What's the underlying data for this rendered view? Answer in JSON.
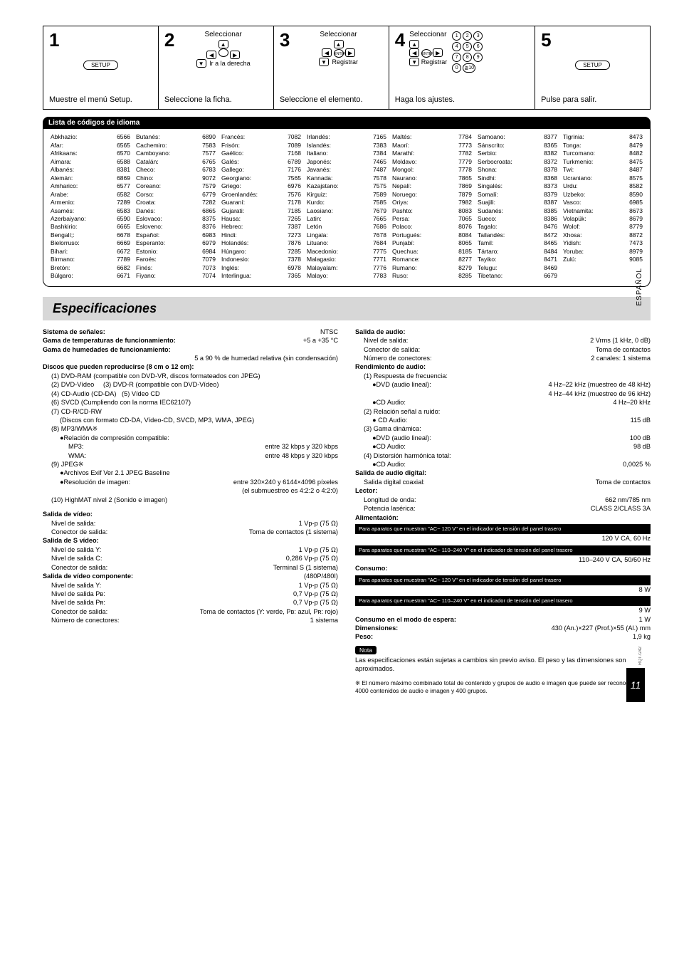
{
  "steps": [
    {
      "num": "1",
      "sel": null,
      "setup": "SETUP",
      "sub": null,
      "action": "Muestre el menú Setup."
    },
    {
      "num": "2",
      "sel": "Seleccionar",
      "setup": null,
      "sub": "Ir a la derecha",
      "action": "Seleccione la ficha."
    },
    {
      "num": "3",
      "sel": "Seleccionar",
      "setup": null,
      "sub": "Registrar",
      "action": "Seleccione el elemento."
    },
    {
      "num": "4",
      "sel": "Seleccionar",
      "setup": null,
      "sub": "Registrar",
      "action": "Haga los ajustes."
    },
    {
      "num": "5",
      "sel": null,
      "setup": "SETUP",
      "sub": null,
      "action": "Pulse para salir."
    }
  ],
  "lang_header": "Lista de códigos de idioma",
  "langs": [
    [
      [
        "Abkhazio:",
        "6566"
      ],
      [
        "Afar:",
        "6565"
      ],
      [
        "Afrikaans:",
        "6570"
      ],
      [
        "Aimara:",
        "6588"
      ],
      [
        "Albanés:",
        "8381"
      ],
      [
        "Alemán:",
        "6869"
      ],
      [
        "Amharico:",
        "6577"
      ],
      [
        "Arabe:",
        "6582"
      ],
      [
        "Armenio:",
        "7289"
      ],
      [
        "Asamés:",
        "6583"
      ],
      [
        "Azerbaiyano:",
        "6590"
      ],
      [
        "Bashkirio:",
        "6665"
      ],
      [
        "Bengalí;:",
        "6678"
      ],
      [
        "Bielorruso:",
        "6669"
      ],
      [
        "Bihari:",
        "6672"
      ],
      [
        "Birmano:",
        "7789"
      ],
      [
        "Bretón:",
        "6682"
      ],
      [
        "Búlgaro:",
        "6671"
      ]
    ],
    [
      [
        "Butanés:",
        "6890"
      ],
      [
        "Cachemiro:",
        "7583"
      ],
      [
        "Camboyano:",
        "7577"
      ],
      [
        "Catalán:",
        "6765"
      ],
      [
        "Checo:",
        "6783"
      ],
      [
        "Chino:",
        "9072"
      ],
      [
        "Coreano:",
        "7579"
      ],
      [
        "Corso:",
        "6779"
      ],
      [
        "Croata:",
        "7282"
      ],
      [
        "Danés:",
        "6865"
      ],
      [
        "Eslovaco:",
        "8375"
      ],
      [
        "Esloveno:",
        "8376"
      ],
      [
        "Español:",
        "6983"
      ],
      [
        "Esperanto:",
        "6979"
      ],
      [
        "Estonio:",
        "6984"
      ],
      [
        "Faroés:",
        "7079"
      ],
      [
        "Finés:",
        "7073"
      ],
      [
        "Fiyano:",
        "7074"
      ]
    ],
    [
      [
        "Francés:",
        "7082"
      ],
      [
        "Frisón:",
        "7089"
      ],
      [
        "Gaélico:",
        "7168"
      ],
      [
        "Galés:",
        "6789"
      ],
      [
        "Gallego:",
        "7176"
      ],
      [
        "Georgiano:",
        "7565"
      ],
      [
        "Griego:",
        "6976"
      ],
      [
        "Groenlandés:",
        "7576"
      ],
      [
        "Guaraní:",
        "7178"
      ],
      [
        "Gujarati:",
        "7185"
      ],
      [
        "Hausa:",
        "7265"
      ],
      [
        "Hebreo:",
        "7387"
      ],
      [
        "Hindi:",
        "7273"
      ],
      [
        "Holandés:",
        "7876"
      ],
      [
        "Húngaro:",
        "7285"
      ],
      [
        "Indonesio:",
        "7378"
      ],
      [
        "Inglés:",
        "6978"
      ],
      [
        "Interlingua:",
        "7365"
      ]
    ],
    [
      [
        "Irlandés:",
        "7165"
      ],
      [
        "Islandés:",
        "7383"
      ],
      [
        "Italiano:",
        "7384"
      ],
      [
        "Japonés:",
        "7465"
      ],
      [
        "Javanés:",
        "7487"
      ],
      [
        "Kannada:",
        "7578"
      ],
      [
        "Kazajstano:",
        "7575"
      ],
      [
        "Kirguiz:",
        "7589"
      ],
      [
        "Kurdo:",
        "7585"
      ],
      [
        "Laosiano:",
        "7679"
      ],
      [
        "Latin:",
        "7665"
      ],
      [
        "Letón",
        "7686"
      ],
      [
        "Lingala:",
        "7678"
      ],
      [
        "Lituano:",
        "7684"
      ],
      [
        "Macedonio:",
        "7775"
      ],
      [
        "Malagasio:",
        "7771"
      ],
      [
        "Malayalam:",
        "7776"
      ],
      [
        "Malayo:",
        "7783"
      ]
    ],
    [
      [
        "Maltés:",
        "7784"
      ],
      [
        "Maorí:",
        "7773"
      ],
      [
        "Marathí:",
        "7782"
      ],
      [
        "Moldavo:",
        "7779"
      ],
      [
        "Mongol:",
        "7778"
      ],
      [
        "Naurano:",
        "7865"
      ],
      [
        "Nepalí:",
        "7869"
      ],
      [
        "Noruego:",
        "7879"
      ],
      [
        "Oriya:",
        "7982"
      ],
      [
        "Pashto:",
        "8083"
      ],
      [
        "Persa:",
        "7065"
      ],
      [
        "Polaco:",
        "8076"
      ],
      [
        "Portugués:",
        "8084"
      ],
      [
        "Punjabí:",
        "8065"
      ],
      [
        "Quechua:",
        "8185"
      ],
      [
        "Romance:",
        "8277"
      ],
      [
        "Rumano:",
        "8279"
      ],
      [
        "Ruso:",
        "8285"
      ]
    ],
    [
      [
        "Samoano:",
        "8377"
      ],
      [
        "Sánscrito:",
        "8365"
      ],
      [
        "Serbio:",
        "8382"
      ],
      [
        "Serbocroata:",
        "8372"
      ],
      [
        "Shona:",
        "8378"
      ],
      [
        "Sindhi:",
        "8368"
      ],
      [
        "Singalés:",
        "8373"
      ],
      [
        "Somalí:",
        "8379"
      ],
      [
        "Suajili:",
        "8387"
      ],
      [
        "Sudanés:",
        "8385"
      ],
      [
        "Sueco:",
        "8386"
      ],
      [
        "Tagalo:",
        "8476"
      ],
      [
        "Tailandés:",
        "8472"
      ],
      [
        "Tamil:",
        "8465"
      ],
      [
        "Tártaro:",
        "8484"
      ],
      [
        "Tayiko:",
        "8471"
      ],
      [
        "Telugu:",
        "8469"
      ],
      [
        "Tibetano:",
        "6679"
      ]
    ],
    [
      [
        "Tigrinia:",
        "8473"
      ],
      [
        "Tonga:",
        "8479"
      ],
      [
        "Turcomano:",
        "8482"
      ],
      [
        "Turkmenio:",
        "8475"
      ],
      [
        "Twi:",
        "8487"
      ],
      [
        "Ucraniano:",
        "8575"
      ],
      [
        "Urdu:",
        "8582"
      ],
      [
        "Uzbeko:",
        "8590"
      ],
      [
        "Vasco:",
        "6985"
      ],
      [
        "Vietnamita:",
        "8673"
      ],
      [
        "Volapük:",
        "8679"
      ],
      [
        "Wolof:",
        "8779"
      ],
      [
        "Xhosa:",
        "8872"
      ],
      [
        "Yidish:",
        "7473"
      ],
      [
        "Yoruba:",
        "8979"
      ],
      [
        "Zulú:",
        "9085"
      ]
    ]
  ],
  "spec_title": "Especificaciones",
  "left": {
    "sistema": {
      "l": "Sistema de señales:",
      "v": "NTSC"
    },
    "temp": {
      "l": "Gama de temperaturas de funcionamiento:",
      "v": "+5 a +35 °C"
    },
    "hum_l": "Gama de humedades de funcionamiento:",
    "hum_v": "5 a 90 % de humedad relativa (sin condensación)",
    "discos_h": "Discos que pueden reproducirse (8 cm o 12 cm):",
    "d1": "(1) DVD-RAM (compatible con DVD-VR, discos formateados con JPEG)",
    "d2a": "(2) DVD-Vídeo",
    "d2b": "(3) DVD-R (compatible con DVD-Vídeo)",
    "d3a": "(4) CD-Audio (CD-DA)",
    "d3b": "(5) Vídeo CD",
    "d6": "(6) SVCD (Cumpliendo con la norma IEC62107)",
    "d7": "(7) CD-R/CD-RW",
    "d7s": "(Discos con formato CD-DA, Vídeo-CD, SVCD, MP3, WMA, JPEG)",
    "d8": "(8) MP3/WMA※",
    "d8r": "●Relación de compresión compatible:",
    "d8mp3": {
      "l": "MP3:",
      "v": "entre 32 kbps y 320 kbps"
    },
    "d8wma": {
      "l": "WMA:",
      "v": "entre 48 kbps y 320 kbps"
    },
    "d9": "(9) JPEG※",
    "d9a": "●Archivos Exif Ver 2.1 JPEG Baseline",
    "d9b": {
      "l": "●Resolución de imagen:",
      "v": "entre 320×240 y 6144×4096 píxeles"
    },
    "d9c": "(el submuestreo es 4:2:2 o 4:2:0)",
    "d10": "(10) HighMAT nivel 2 (Sonido e imagen)",
    "sv_h": "Salida de vídeo:",
    "sv_n": {
      "l": "Nivel de salida:",
      "v": "1 Vp-p (75 Ω)"
    },
    "sv_c": {
      "l": "Conector de salida:",
      "v": "Toma de contactos (1 sistema)"
    },
    "ss_h": "Salida de S vídeo:",
    "ss_y": {
      "l": "Nivel de salida Y:",
      "v": "1 Vp-p (75 Ω)"
    },
    "ss_c": {
      "l": "Nivel de salida C:",
      "v": "0,286 Vp-p (75 Ω)"
    },
    "ss_con": {
      "l": "Conector de salida:",
      "v": "Terminal S (1 sistema)"
    },
    "svc_h": {
      "l": "Salida de vídeo componente:",
      "v": "(480P/480I)"
    },
    "svc_y": {
      "l": "Nivel de salida Y:",
      "v": "1 Vp-p (75 Ω)"
    },
    "svc_pb": {
      "l": "Nivel de salida Pʙ:",
      "v": "0,7 Vp-p (75 Ω)"
    },
    "svc_pr": {
      "l": "Nivel de salida Pʀ:",
      "v": "0,7 Vp-p (75 Ω)"
    },
    "svc_con": {
      "l": "Conector de salida:",
      "v": "Toma de contactos (Y: verde, Pʙ: azul, Pʀ: rojo)"
    },
    "svc_num": {
      "l": "Número de conectores:",
      "v": "1 sistema"
    }
  },
  "right": {
    "sa_h": "Salida de audio:",
    "sa_n": {
      "l": "Nivel de salida:",
      "v": "2 Vrms (1 kHz, 0 dB)"
    },
    "sa_c": {
      "l": "Conector de salida:",
      "v": "Toma de contactos"
    },
    "sa_num": {
      "l": "Número de conectores:",
      "v": "2 canales:  1 sistema"
    },
    "ra_h": "Rendimiento de audio:",
    "ra1": "(1) Respuesta de frecuencia:",
    "ra1a": {
      "l": "●DVD (audio lineal):",
      "v": "4 Hz–22 kHz (muestreo de 48 kHz)"
    },
    "ra1b": "4 Hz–44 kHz (muestreo de 96 kHz)",
    "ra1c": {
      "l": "●CD Audio:",
      "v": "4 Hz–20 kHz"
    },
    "ra2": "(2) Relación señal a ruido:",
    "ra2a": {
      "l": "● CD Audio:",
      "v": "115 dB"
    },
    "ra3": "(3) Gama dinámica:",
    "ra3a": {
      "l": "●DVD (audio lineal):",
      "v": "100 dB"
    },
    "ra3b": {
      "l": "●CD Audio:",
      "v": "98 dB"
    },
    "ra4": "(4) Distorsión harmónica total:",
    "ra4a": {
      "l": "●CD Audio:",
      "v": "0,0025 %"
    },
    "sad_h": "Salida de audio digital:",
    "sad": {
      "l": "Salida digital coaxial:",
      "v": "Toma de contactos"
    },
    "lec_h": "Lector:",
    "lec1": {
      "l": "Longitud de onda:",
      "v": "662 nm/785 nm"
    },
    "lec2": {
      "l": "Potencia lasérica:",
      "v": "CLASS 2/CLASS 3A"
    },
    "alim_h": "Alimentación:",
    "bb1": "Para aparatos que muestran \"AC~ 120 V\" en el indicador de tensión del panel trasero",
    "bb1v": "120 V CA, 60 Hz",
    "bb2": "Para aparatos que muestran \"AC~ 110–240 V\" en el indicador de tensión del panel trasero",
    "bb2v": "110–240 V CA, 50/60 Hz",
    "cons_h": "Consumo:",
    "bb3": "Para aparatos que muestran \"AC~ 120 V\" en el indicador de tensión del panel trasero",
    "bb3v": "8 W",
    "bb4": "Para aparatos que muestran \"AC~ 110–240 V\" en el indicador de tensión del panel trasero",
    "bb4v": "9 W",
    "esp": {
      "l": "Consumo en el modo de espera:",
      "v": "1 W"
    },
    "dim": {
      "l": "Dimensiones:",
      "v": "430 (An.)×227 (Prof.)×55 (Al.) mm"
    },
    "peso": {
      "l": "Peso:",
      "v": "1,9 kg"
    },
    "nota": "Nota",
    "nota_txt": "Las especificaciones están sujetas a cambios sin previo aviso. El peso y las dimensiones son aproximados.",
    "foot": "※ El número máximo combinado total de contenido y grupos de audio e imagen que puede ser reconocido:  4000 contenidos de audio e imagen y 400 grupos."
  },
  "side": "ESPAÑOL",
  "page": "11",
  "rqt": "RQT7242",
  "footpg": "11"
}
